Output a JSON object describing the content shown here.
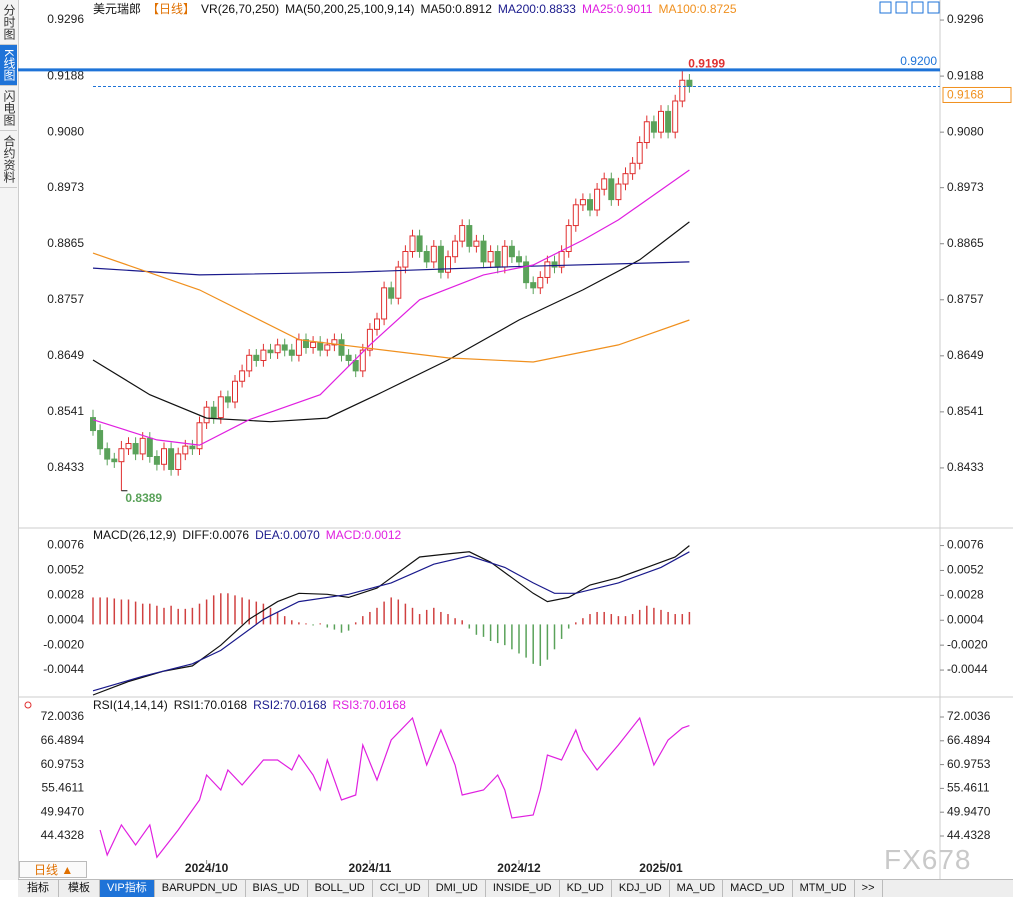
{
  "sidebar": [
    "分时图",
    "K线图",
    "闪电图",
    "合约资料"
  ],
  "period_selector": "日线",
  "watermark": "FX678",
  "tabs": [
    "指标",
    "模板",
    "VIP指标",
    "BARUPDN_UD",
    "BIAS_UD",
    "BOLL_UD",
    "CCI_UD",
    "DMI_UD",
    "INSIDE_UD",
    "KD_UD",
    "KDJ_UD",
    "MA_UD",
    "MACD_UD",
    "MTM_UD",
    ">>"
  ],
  "chart_data": [
    {
      "type": "candlestick",
      "title": "美元瑞郎",
      "period": "【日线】",
      "indicator": "VR(26,70,250)",
      "ma_label": "MA(50,200,25,100,9,14)",
      "ylim": [
        0.8323,
        0.9325
      ],
      "yticks": [
        0.9296,
        0.9188,
        {
          "value": 0.908,
          "label": "0.9080"
        },
        0.8973,
        0.8865,
        0.8757,
        0.8649,
        0.8541,
        0.8433
      ],
      "up_color": "#e03030",
      "down_color": "#5aa25a",
      "ohlc": [
        [
          0.853,
          0.8545,
          0.8495,
          0.8505
        ],
        [
          0.8505,
          0.8517,
          0.8458,
          0.847
        ],
        [
          0.847,
          0.8482,
          0.8438,
          0.845
        ],
        [
          0.845,
          0.8462,
          0.8433,
          0.8445
        ],
        [
          0.8445,
          0.8485,
          0.8389,
          0.847
        ],
        [
          0.847,
          0.8492,
          0.8458,
          0.848
        ],
        [
          0.848,
          0.8492,
          0.8448,
          0.846
        ],
        [
          0.846,
          0.8502,
          0.8448,
          0.849
        ],
        [
          0.849,
          0.8502,
          0.8443,
          0.8455
        ],
        [
          0.8455,
          0.8467,
          0.8428,
          0.844
        ],
        [
          0.844,
          0.8482,
          0.8428,
          0.847
        ],
        [
          0.847,
          0.8482,
          0.8418,
          0.843
        ],
        [
          0.843,
          0.8472,
          0.8418,
          0.846
        ],
        [
          0.846,
          0.8487,
          0.8448,
          0.8475
        ],
        [
          0.8475,
          0.8487,
          0.8458,
          0.847
        ],
        [
          0.847,
          0.8532,
          0.8458,
          0.852
        ],
        [
          0.852,
          0.8562,
          0.8508,
          0.855
        ],
        [
          0.855,
          0.8562,
          0.8518,
          0.853
        ],
        [
          0.853,
          0.8582,
          0.8518,
          0.857
        ],
        [
          0.857,
          0.8582,
          0.8548,
          0.856
        ],
        [
          0.856,
          0.8612,
          0.8548,
          0.86
        ],
        [
          0.86,
          0.8632,
          0.8588,
          0.862
        ],
        [
          0.862,
          0.8662,
          0.8608,
          0.865
        ],
        [
          0.865,
          0.8662,
          0.8628,
          0.864
        ],
        [
          0.864,
          0.8672,
          0.8628,
          0.866
        ],
        [
          0.866,
          0.8672,
          0.8643,
          0.8655
        ],
        [
          0.8655,
          0.8682,
          0.8643,
          0.867
        ],
        [
          0.867,
          0.8682,
          0.8648,
          0.866
        ],
        [
          0.866,
          0.8672,
          0.8638,
          0.865
        ],
        [
          0.865,
          0.8692,
          0.8638,
          0.868
        ],
        [
          0.868,
          0.8692,
          0.8653,
          0.8665
        ],
        [
          0.8665,
          0.8687,
          0.8653,
          0.8675
        ],
        [
          0.8675,
          0.8687,
          0.8648,
          0.866
        ],
        [
          0.866,
          0.8682,
          0.8648,
          0.867
        ],
        [
          0.867,
          0.8692,
          0.8658,
          0.868
        ],
        [
          0.868,
          0.8692,
          0.8638,
          0.865
        ],
        [
          0.865,
          0.8662,
          0.8628,
          0.864
        ],
        [
          0.864,
          0.8652,
          0.8608,
          0.862
        ],
        [
          0.862,
          0.8672,
          0.8608,
          0.866
        ],
        [
          0.866,
          0.8712,
          0.8648,
          0.87
        ],
        [
          0.87,
          0.8732,
          0.8688,
          0.872
        ],
        [
          0.872,
          0.8792,
          0.8708,
          0.878
        ],
        [
          0.878,
          0.8792,
          0.8748,
          0.876
        ],
        [
          0.876,
          0.8832,
          0.8748,
          0.882
        ],
        [
          0.882,
          0.8862,
          0.8808,
          0.885
        ],
        [
          0.885,
          0.8892,
          0.8838,
          0.888
        ],
        [
          0.888,
          0.8892,
          0.8838,
          0.885
        ],
        [
          0.885,
          0.8862,
          0.8818,
          0.883
        ],
        [
          0.883,
          0.8872,
          0.8818,
          0.886
        ],
        [
          0.886,
          0.8872,
          0.8798,
          0.881
        ],
        [
          0.881,
          0.8852,
          0.8798,
          0.884
        ],
        [
          0.884,
          0.8882,
          0.8828,
          0.887
        ],
        [
          0.887,
          0.8912,
          0.8858,
          0.89
        ],
        [
          0.89,
          0.8912,
          0.8848,
          0.886
        ],
        [
          0.886,
          0.8882,
          0.8848,
          0.887
        ],
        [
          0.887,
          0.8882,
          0.8818,
          0.883
        ],
        [
          0.883,
          0.8862,
          0.8818,
          0.885
        ],
        [
          0.885,
          0.8862,
          0.8808,
          0.882
        ],
        [
          0.882,
          0.8872,
          0.8808,
          0.886
        ],
        [
          0.886,
          0.8872,
          0.8828,
          0.884
        ],
        [
          0.884,
          0.8852,
          0.8818,
          0.883
        ],
        [
          0.883,
          0.8842,
          0.8778,
          0.879
        ],
        [
          0.879,
          0.8802,
          0.8768,
          0.878
        ],
        [
          0.878,
          0.8812,
          0.8768,
          0.88
        ],
        [
          0.88,
          0.8842,
          0.8788,
          0.883
        ],
        [
          0.883,
          0.8842,
          0.8808,
          0.882
        ],
        [
          0.882,
          0.8862,
          0.8808,
          0.885
        ],
        [
          0.885,
          0.8912,
          0.8838,
          0.89
        ],
        [
          0.89,
          0.8952,
          0.8888,
          0.894
        ],
        [
          0.894,
          0.8962,
          0.8928,
          0.895
        ],
        [
          0.895,
          0.8962,
          0.8918,
          0.893
        ],
        [
          0.893,
          0.8982,
          0.8918,
          0.897
        ],
        [
          0.897,
          0.9002,
          0.8958,
          0.899
        ],
        [
          0.899,
          0.9002,
          0.8938,
          0.895
        ],
        [
          0.895,
          0.8992,
          0.8938,
          0.898
        ],
        [
          0.898,
          0.9012,
          0.8968,
          0.9
        ],
        [
          0.9,
          0.9032,
          0.8988,
          0.902
        ],
        [
          0.902,
          0.9072,
          0.9008,
          0.906
        ],
        [
          0.906,
          0.9112,
          0.9048,
          0.91
        ],
        [
          0.91,
          0.9112,
          0.9068,
          0.908
        ],
        [
          0.908,
          0.9132,
          0.9068,
          0.912
        ],
        [
          0.912,
          0.9132,
          0.9068,
          0.908
        ],
        [
          0.908,
          0.9152,
          0.9068,
          0.914
        ],
        [
          0.914,
          0.9199,
          0.9128,
          0.918
        ],
        [
          0.918,
          0.9192,
          0.9156,
          0.9168
        ]
      ],
      "series": [
        {
          "name": "MA50:0.8912",
          "color": "#111111",
          "x": [
            0,
            8,
            16,
            25,
            33,
            40,
            50,
            60,
            69,
            77,
            84
          ],
          "values": [
            0.8641,
            0.8574,
            0.8529,
            0.8522,
            0.8529,
            0.8574,
            0.8641,
            0.8718,
            0.8776,
            0.8834,
            0.8907
          ]
        },
        {
          "name": "MA200:0.8833",
          "color": "#1a1a8c",
          "x": [
            0,
            15,
            36,
            57,
            84
          ],
          "values": [
            0.8818,
            0.8805,
            0.881,
            0.882,
            0.883
          ]
        },
        {
          "name": "MA25:0.9011",
          "color": "#e020e0",
          "x": [
            0,
            9,
            15,
            22,
            32,
            39,
            46,
            55,
            62,
            69,
            74,
            84
          ],
          "values": [
            0.8526,
            0.8487,
            0.8477,
            0.8526,
            0.8574,
            0.867,
            0.8757,
            0.8805,
            0.8824,
            0.8872,
            0.8911,
            0.9007
          ]
        },
        {
          "name": "MA100:0.8725",
          "color": "#f0901e",
          "x": [
            0,
            15,
            29,
            50,
            62,
            74,
            84
          ],
          "values": [
            0.8847,
            0.8776,
            0.868,
            0.8645,
            0.8637,
            0.867,
            0.8718
          ]
        }
      ],
      "high": {
        "value": 0.9199,
        "color": "#e03030"
      },
      "low": {
        "value": 0.8389,
        "color": "#5aa25a"
      },
      "reference_line": {
        "value": 0.92,
        "label": "0.9200",
        "color": "#1e73d8"
      },
      "last_price": {
        "value": 0.9168,
        "color": "#f0901e"
      }
    },
    {
      "type": "macd",
      "title": "MACD(26,12,9)",
      "ylim": [
        -0.0069,
        0.0091
      ],
      "yticks": [
        0.0076,
        0.0052,
        0.0028,
        0.0004,
        {
          "value": -0.002,
          "label": "-0.0020"
        },
        -0.0044
      ],
      "histogram": {
        "name": "MACD:0.0012",
        "color": "#e020e0",
        "up_color": "#d04040",
        "down_color": "#5aa25a",
        "values": [
          0.0026,
          0.0026,
          0.0026,
          0.0025,
          0.0024,
          0.0024,
          0.0022,
          0.002,
          0.002,
          0.0018,
          0.0016,
          0.0018,
          0.0015,
          0.0015,
          0.0016,
          0.002,
          0.0024,
          0.0028,
          0.003,
          0.003,
          0.0028,
          0.0026,
          0.0024,
          0.0022,
          0.002,
          0.0016,
          0.0012,
          0.0008,
          0.0004,
          0.0002,
          0.0001,
          -0.0001,
          0.0001,
          -0.0003,
          -0.0005,
          -0.0008,
          -0.0006,
          0.0002,
          0.0008,
          0.0012,
          0.0016,
          0.0022,
          0.0026,
          0.0024,
          0.002,
          0.0016,
          0.001,
          0.0014,
          0.0016,
          0.0012,
          0.001,
          0.0006,
          0.0004,
          -0.0004,
          -0.001,
          -0.0012,
          -0.0016,
          -0.0018,
          -0.002,
          -0.0024,
          -0.0028,
          -0.0032,
          -0.0038,
          -0.004,
          -0.0034,
          -0.0024,
          -0.0014,
          -0.0004,
          0.0002,
          0.0006,
          0.001,
          0.0012,
          0.0012,
          0.001,
          0.0008,
          0.0008,
          0.001,
          0.0014,
          0.0018,
          0.0016,
          0.0014,
          0.0012,
          0.001,
          0.001,
          0.0012
        ]
      },
      "series": [
        {
          "name": "DIFF:0.0076",
          "color": "#111111",
          "x": [
            0,
            5,
            10,
            14,
            18,
            22,
            26,
            29,
            33,
            36,
            40,
            44,
            46,
            50,
            53,
            56,
            59,
            62,
            64,
            67,
            70,
            74,
            78,
            82,
            84
          ],
          "values": [
            -0.0068,
            -0.0055,
            -0.0045,
            -0.004,
            -0.002,
            0.0005,
            0.0022,
            0.003,
            0.0029,
            0.0026,
            0.0035,
            0.0055,
            0.0065,
            0.0068,
            0.007,
            0.006,
            0.0045,
            0.003,
            0.0022,
            0.0026,
            0.0038,
            0.0045,
            0.0055,
            0.0065,
            0.0076
          ]
        },
        {
          "name": "DEA:0.0070",
          "color": "#1a1a8c",
          "x": [
            0,
            7,
            14,
            18,
            24,
            29,
            36,
            42,
            48,
            53,
            58,
            62,
            65,
            68,
            74,
            80,
            84
          ],
          "values": [
            -0.0064,
            -0.005,
            -0.0038,
            -0.0025,
            0.0005,
            0.0022,
            0.0029,
            0.004,
            0.0058,
            0.0066,
            0.0055,
            0.004,
            0.003,
            0.003,
            0.004,
            0.0055,
            0.007
          ]
        }
      ]
    },
    {
      "type": "line",
      "title": "RSI(14,14,14)",
      "ylim": [
        38.87,
        75.94
      ],
      "yticks": [
        72.0036,
        66.4894,
        60.9753,
        55.4611,
        {
          "value": 49.947,
          "label": "49.9470"
        },
        44.4328
      ],
      "legend": [
        {
          "text": "RSI1:70.0168",
          "color": "#111111"
        },
        {
          "text": "RSI2:70.0168",
          "color": "#1a1a8c"
        },
        {
          "text": "RSI3:70.0168",
          "color": "#e020e0"
        }
      ],
      "series": [
        {
          "color": "#e020e0",
          "x": [
            1,
            2,
            4,
            6,
            8,
            9,
            12,
            15,
            16,
            18,
            19,
            21,
            24,
            26,
            28,
            29,
            31,
            32,
            33,
            35,
            37,
            38,
            40,
            42,
            45,
            47,
            49,
            51,
            52,
            55,
            57,
            58,
            59,
            62,
            63,
            64,
            66,
            68,
            69,
            71,
            74,
            77,
            79,
            81,
            83,
            84
          ],
          "values": [
            45.82,
            40.03,
            47.0,
            42.35,
            47.0,
            39.5,
            45.82,
            52.77,
            58.56,
            55.09,
            59.72,
            56.25,
            62.04,
            62.04,
            59.72,
            63.2,
            58.56,
            55.09,
            62.04,
            52.77,
            53.93,
            65.52,
            57.41,
            66.67,
            71.77,
            60.88,
            68.99,
            60.88,
            53.93,
            55.09,
            58.56,
            55.09,
            48.6,
            49.3,
            55.09,
            63.2,
            62.04,
            68.99,
            64.36,
            59.72,
            65.52,
            71.77,
            60.88,
            66.67,
            69.45,
            70.0168
          ]
        }
      ],
      "categories": [
        null,
        null,
        null,
        null,
        null,
        null,
        null,
        null,
        null,
        null,
        null,
        null,
        null,
        null,
        null,
        null,
        "2024/10",
        null,
        null,
        null,
        null,
        null,
        null,
        null,
        null,
        null,
        null,
        null,
        null,
        null,
        null,
        null,
        null,
        null,
        null,
        null,
        null,
        null,
        null,
        "2024/11",
        null,
        null,
        null,
        null,
        null,
        null,
        null,
        null,
        null,
        null,
        null,
        null,
        null,
        null,
        null,
        null,
        null,
        null,
        null,
        null,
        "2024/12",
        null,
        null,
        null,
        null,
        null,
        null,
        null,
        null,
        null,
        null,
        null,
        null,
        null,
        null,
        null,
        null,
        null,
        null,
        null,
        "2025/01",
        null,
        null,
        null,
        null
      ]
    }
  ]
}
